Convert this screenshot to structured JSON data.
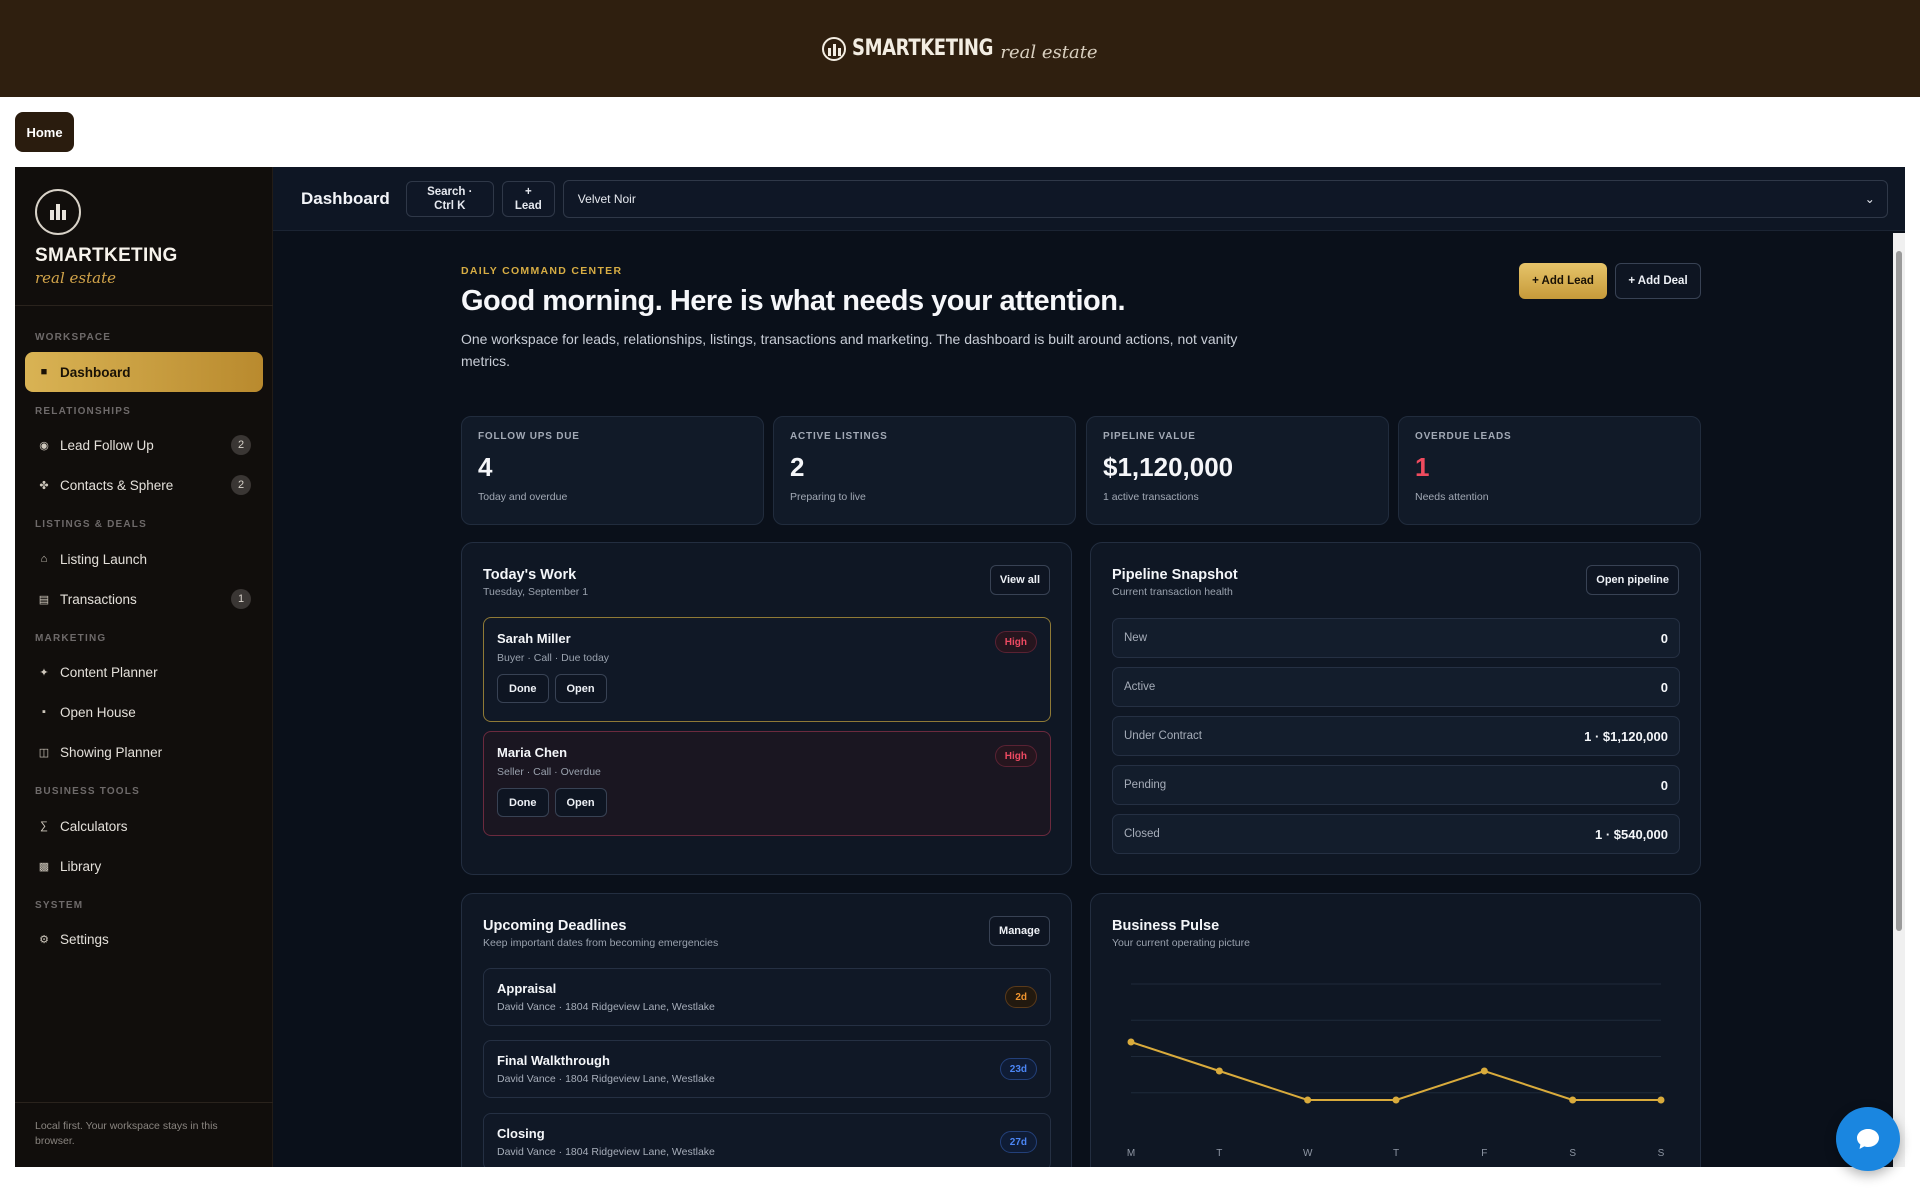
{
  "topbar": {
    "brand": "SMARTKETING",
    "brand_script": "real estate"
  },
  "home_button": "Home",
  "sidebar": {
    "brand": "SMARTKETING",
    "brand_script": "real estate",
    "sections": {
      "workspace": "WORKSPACE",
      "relationships": "RELATIONSHIPS",
      "listings": "LISTINGS & DEALS",
      "marketing": "MARKETING",
      "business": "BUSINESS TOOLS",
      "system": "SYSTEM"
    },
    "items": {
      "dashboard": {
        "label": "Dashboard",
        "icon": "grid-icon"
      },
      "lead_follow_up": {
        "label": "Lead Follow Up",
        "icon": "target-icon",
        "count": "2"
      },
      "contacts": {
        "label": "Contacts & Sphere",
        "icon": "people-icon",
        "count": "2"
      },
      "listing_launch": {
        "label": "Listing Launch",
        "icon": "home-icon"
      },
      "transactions": {
        "label": "Transactions",
        "icon": "ledger-icon",
        "count": "1"
      },
      "content_planner": {
        "label": "Content Planner",
        "icon": "sparkle-icon"
      },
      "open_house": {
        "label": "Open House",
        "icon": "dot-icon"
      },
      "showing_planner": {
        "label": "Showing Planner",
        "icon": "columns-icon"
      },
      "calculators": {
        "label": "Calculators",
        "icon": "sigma-icon"
      },
      "library": {
        "label": "Library",
        "icon": "books-icon"
      },
      "settings": {
        "label": "Settings",
        "icon": "gear-icon"
      }
    },
    "footer": "Local first. Your workspace stays in this browser."
  },
  "header": {
    "title": "Dashboard",
    "search_line1": "Search ·",
    "search_line2": "Ctrl K",
    "lead_line1": "+",
    "lead_line2": "Lead",
    "theme": "Velvet Noir"
  },
  "hero": {
    "eyebrow": "DAILY COMMAND CENTER",
    "headline": "Good morning. Here is what needs your attention.",
    "subline": "One workspace for leads, relationships, listings, transactions and marketing. The dashboard is built around actions, not vanity metrics.",
    "add_lead": "+ Add Lead",
    "add_deal": "+ Add Deal"
  },
  "stats": [
    {
      "label": "FOLLOW UPS DUE",
      "value": "4",
      "caption": "Today and overdue"
    },
    {
      "label": "ACTIVE LISTINGS",
      "value": "2",
      "caption": "Preparing to live"
    },
    {
      "label": "PIPELINE VALUE",
      "value": "$1,120,000",
      "caption": "1 active transactions"
    },
    {
      "label": "OVERDUE LEADS",
      "value": "1",
      "caption": "Needs attention"
    }
  ],
  "todays_work": {
    "title": "Today's Work",
    "subtitle": "Tuesday, September 1",
    "view_all": "View all",
    "tasks": [
      {
        "name": "Sarah Miller",
        "meta": "Buyer · Call · Due today",
        "priority": "High",
        "done": "Done",
        "open": "Open"
      },
      {
        "name": "Maria Chen",
        "meta": "Seller · Call · Overdue",
        "priority": "High",
        "done": "Done",
        "open": "Open"
      }
    ]
  },
  "pipeline": {
    "title": "Pipeline Snapshot",
    "subtitle": "Current transaction health",
    "open_button": "Open pipeline",
    "rows": [
      {
        "label": "New",
        "value": "0"
      },
      {
        "label": "Active",
        "value": "0"
      },
      {
        "label": "Under Contract",
        "value": "1 · $1,120,000"
      },
      {
        "label": "Pending",
        "value": "0"
      },
      {
        "label": "Closed",
        "value": "1 · $540,000"
      }
    ]
  },
  "deadlines": {
    "title": "Upcoming Deadlines",
    "subtitle": "Keep important dates from becoming emergencies",
    "manage": "Manage",
    "items": [
      {
        "name": "Appraisal",
        "meta": "David Vance · 1804 Ridgeview Lane, Westlake",
        "badge": "2d"
      },
      {
        "name": "Final Walkthrough",
        "meta": "David Vance · 1804 Ridgeview Lane, Westlake",
        "badge": "23d"
      },
      {
        "name": "Closing",
        "meta": "David Vance · 1804 Ridgeview Lane, Westlake",
        "badge": "27d"
      }
    ]
  },
  "pulse": {
    "title": "Business Pulse",
    "subtitle": "Your current operating picture"
  },
  "chart_data": {
    "type": "line",
    "categories": [
      "M",
      "T",
      "W",
      "T",
      "F",
      "S",
      "S"
    ],
    "series": [
      {
        "values": [
          3,
          2,
          1,
          1,
          2,
          1,
          1
        ],
        "color": "#d9ab3c"
      }
    ],
    "ylim": [
      0,
      5
    ],
    "grid": true
  },
  "chat_icon": "chat-bubble-icon"
}
